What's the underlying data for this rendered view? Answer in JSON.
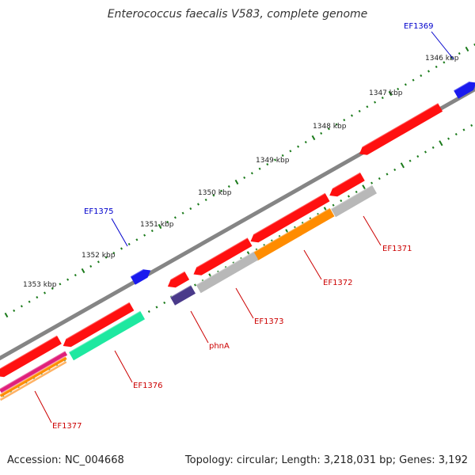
{
  "title": "Enterococcus faecalis V583, complete genome",
  "footer": {
    "accession": "Accession: NC_004668",
    "summary": "Topology: circular; Length: 3,218,031 bp; Genes: 3,192"
  },
  "colors": {
    "backbone": "#858585",
    "tick": "#1a7a1a",
    "cds": "#ff1010",
    "forward_feature": "#1a1aee",
    "label_forward": "#0000cc",
    "label_reverse": "#cc0000",
    "connector_forward": "#0000cc",
    "connector_reverse": "#cc0000"
  },
  "scale_labels": [
    "1346 kbp",
    "1347 kbp",
    "1348 kbp",
    "1349 kbp",
    "1350 kbp",
    "1351 kbp",
    "1352 kbp",
    "1353 kbp"
  ],
  "gene_labels": [
    {
      "text": "EF1369",
      "strand": "forward"
    },
    {
      "text": "EF1375",
      "strand": "forward"
    },
    {
      "text": "EF1371",
      "strand": "reverse"
    },
    {
      "text": "EF1372",
      "strand": "reverse"
    },
    {
      "text": "EF1373",
      "strand": "reverse"
    },
    {
      "text": "phnA",
      "strand": "reverse"
    },
    {
      "text": "EF1376",
      "strand": "reverse"
    },
    {
      "text": "EF1377",
      "strand": "reverse"
    }
  ],
  "features": [
    {
      "name": "EF1369-feature",
      "color": "#1a1aee",
      "strand": "forward"
    },
    {
      "name": "EF1375-feature",
      "color": "#1a1aee",
      "strand": "forward"
    },
    {
      "name": "EF1371-feature",
      "color": "#b8b8b8",
      "strand": "reverse"
    },
    {
      "name": "EF1372-feature",
      "color": "#ff8c00",
      "strand": "reverse"
    },
    {
      "name": "EF1373-feature",
      "color": "#b8b8b8",
      "strand": "reverse"
    },
    {
      "name": "phnA-feature",
      "color": "#4a3a8a",
      "strand": "reverse"
    },
    {
      "name": "EF1376-feature",
      "color": "#1ee8a0",
      "strand": "reverse"
    },
    {
      "name": "EF1377-feature",
      "color": "#ff8c00",
      "strand": "reverse"
    }
  ]
}
